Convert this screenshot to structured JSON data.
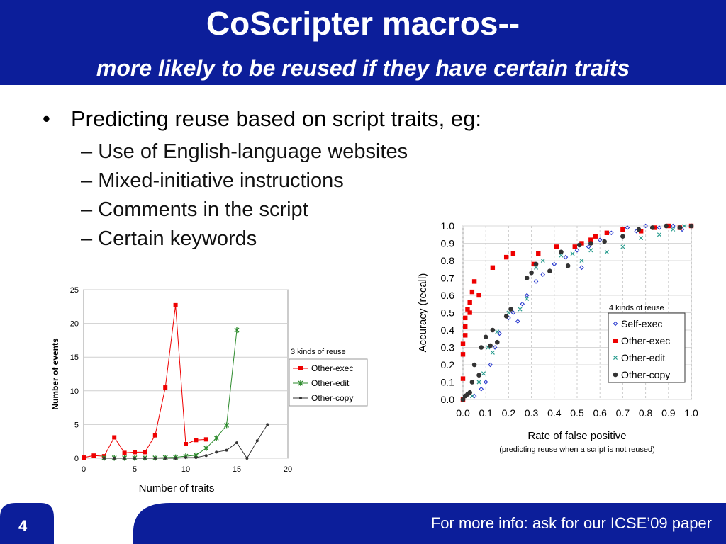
{
  "header": {
    "title": "CoScripter macros--",
    "subtitle": "more likely to be reused if they have certain traits"
  },
  "bullets": {
    "main": "Predicting reuse based on script traits, eg:",
    "dash": "–",
    "subs": [
      "Use of English-language websites",
      "Mixed-initiative instructions",
      "Comments in the script",
      "Certain keywords"
    ]
  },
  "footer": {
    "slide_number": "4",
    "text": "For more info: ask for our ICSE’09 paper"
  },
  "colors": {
    "header_bg": "#0c1e9a",
    "red": "#ee0000",
    "green": "#2e8b2e",
    "black": "#333333",
    "blue": "#2233cc",
    "teal": "#2a9d8f"
  },
  "chart_data": [
    {
      "type": "line",
      "xlabel": "Number of traits",
      "ylabel": "Number of events",
      "xlim": [
        0,
        20
      ],
      "ylim": [
        0,
        25
      ],
      "xticks": [
        0,
        5,
        10,
        15,
        20
      ],
      "yticks": [
        0,
        5,
        10,
        15,
        20,
        25
      ],
      "grid": true,
      "legend_title": "3 kinds of reuse",
      "legend_position": "right",
      "series": [
        {
          "name": "Other-exec",
          "marker": "square",
          "color": "#ee0000",
          "x": [
            0,
            1,
            2,
            3,
            4,
            5,
            6,
            7,
            8,
            9,
            10,
            11,
            12
          ],
          "y": [
            0.1,
            0.4,
            0.3,
            3.1,
            0.8,
            0.9,
            0.9,
            3.4,
            10.5,
            22.7,
            2.1,
            2.7,
            2.8
          ]
        },
        {
          "name": "Other-edit",
          "marker": "star",
          "color": "#2e8b2e",
          "x": [
            2,
            3,
            4,
            5,
            6,
            7,
            8,
            9,
            10,
            11,
            12,
            13,
            14,
            15
          ],
          "y": [
            0.05,
            0.05,
            0.05,
            0.05,
            0.05,
            0.05,
            0.1,
            0.15,
            0.3,
            0.45,
            1.5,
            3.0,
            4.9,
            19.0
          ]
        },
        {
          "name": "Other-copy",
          "marker": "dot",
          "color": "#333333",
          "x": [
            2,
            3,
            4,
            5,
            6,
            7,
            8,
            9,
            10,
            11,
            12,
            13,
            14,
            15,
            16,
            17,
            18
          ],
          "y": [
            0,
            0,
            0,
            0,
            0,
            0,
            0,
            0,
            0.1,
            0.1,
            0.4,
            0.9,
            1.2,
            2.3,
            0.0,
            2.6,
            5.0
          ]
        }
      ]
    },
    {
      "type": "scatter",
      "xlabel": "Rate of false positive",
      "xlabel_note": "(predicting reuse when a script is not reused)",
      "ylabel": "Accuracy (recall)",
      "xlim": [
        0,
        1
      ],
      "ylim": [
        0,
        1
      ],
      "xticks": [
        0.0,
        0.1,
        0.2,
        0.3,
        0.4,
        0.5,
        0.6,
        0.7,
        0.8,
        0.9,
        1.0
      ],
      "yticks": [
        0.0,
        0.1,
        0.2,
        0.3,
        0.4,
        0.5,
        0.6,
        0.7,
        0.8,
        0.9,
        1.0
      ],
      "tick_format": "0.0",
      "grid": true,
      "legend_title": "4 kinds of reuse",
      "legend_position": "right",
      "series": [
        {
          "name": "Self-exec",
          "marker": "diamond",
          "color": "#2233cc",
          "points": [
            [
              0.05,
              0.02
            ],
            [
              0.08,
              0.06
            ],
            [
              0.1,
              0.1
            ],
            [
              0.12,
              0.2
            ],
            [
              0.14,
              0.3
            ],
            [
              0.16,
              0.38
            ],
            [
              0.2,
              0.47
            ],
            [
              0.22,
              0.5
            ],
            [
              0.24,
              0.45
            ],
            [
              0.26,
              0.55
            ],
            [
              0.28,
              0.6
            ],
            [
              0.32,
              0.68
            ],
            [
              0.35,
              0.72
            ],
            [
              0.4,
              0.78
            ],
            [
              0.45,
              0.82
            ],
            [
              0.5,
              0.86
            ],
            [
              0.52,
              0.76
            ],
            [
              0.55,
              0.88
            ],
            [
              0.6,
              0.92
            ],
            [
              0.65,
              0.96
            ],
            [
              0.7,
              0.98
            ],
            [
              0.72,
              0.99
            ],
            [
              0.76,
              0.97
            ],
            [
              0.8,
              1.0
            ],
            [
              0.86,
              0.99
            ],
            [
              0.92,
              1.0
            ],
            [
              0.96,
              0.98
            ],
            [
              1.0,
              1.0
            ]
          ]
        },
        {
          "name": "Other-exec",
          "marker": "square",
          "color": "#ee0000",
          "points": [
            [
              0.0,
              0.0
            ],
            [
              0.0,
              0.12
            ],
            [
              0.0,
              0.26
            ],
            [
              0.0,
              0.32
            ],
            [
              0.01,
              0.37
            ],
            [
              0.01,
              0.42
            ],
            [
              0.01,
              0.47
            ],
            [
              0.02,
              0.52
            ],
            [
              0.03,
              0.5
            ],
            [
              0.03,
              0.56
            ],
            [
              0.04,
              0.62
            ],
            [
              0.05,
              0.68
            ],
            [
              0.07,
              0.6
            ],
            [
              0.13,
              0.76
            ],
            [
              0.19,
              0.82
            ],
            [
              0.22,
              0.84
            ],
            [
              0.31,
              0.78
            ],
            [
              0.33,
              0.84
            ],
            [
              0.41,
              0.88
            ],
            [
              0.49,
              0.88
            ],
            [
              0.52,
              0.9
            ],
            [
              0.56,
              0.92
            ],
            [
              0.58,
              0.94
            ],
            [
              0.63,
              0.96
            ],
            [
              0.7,
              0.98
            ],
            [
              0.78,
              0.97
            ],
            [
              0.84,
              0.99
            ],
            [
              0.9,
              1.0
            ],
            [
              0.95,
              0.99
            ],
            [
              1.0,
              1.0
            ]
          ]
        },
        {
          "name": "Other-edit",
          "marker": "cross",
          "color": "#2a9d8f",
          "points": [
            [
              0.04,
              0.02
            ],
            [
              0.07,
              0.1
            ],
            [
              0.09,
              0.15
            ],
            [
              0.11,
              0.3
            ],
            [
              0.13,
              0.27
            ],
            [
              0.15,
              0.39
            ],
            [
              0.2,
              0.5
            ],
            [
              0.25,
              0.52
            ],
            [
              0.28,
              0.58
            ],
            [
              0.32,
              0.76
            ],
            [
              0.35,
              0.8
            ],
            [
              0.43,
              0.83
            ],
            [
              0.48,
              0.84
            ],
            [
              0.52,
              0.8
            ],
            [
              0.56,
              0.86
            ],
            [
              0.63,
              0.85
            ],
            [
              0.7,
              0.88
            ],
            [
              0.78,
              0.93
            ],
            [
              0.86,
              0.95
            ],
            [
              0.92,
              0.98
            ],
            [
              0.97,
              1.0
            ]
          ]
        },
        {
          "name": "Other-copy",
          "marker": "dot",
          "color": "#333333",
          "points": [
            [
              0.0,
              0.0
            ],
            [
              0.01,
              0.02
            ],
            [
              0.02,
              0.03
            ],
            [
              0.03,
              0.04
            ],
            [
              0.04,
              0.1
            ],
            [
              0.05,
              0.2
            ],
            [
              0.07,
              0.14
            ],
            [
              0.08,
              0.3
            ],
            [
              0.1,
              0.36
            ],
            [
              0.12,
              0.31
            ],
            [
              0.13,
              0.4
            ],
            [
              0.15,
              0.33
            ],
            [
              0.19,
              0.48
            ],
            [
              0.21,
              0.52
            ],
            [
              0.28,
              0.7
            ],
            [
              0.3,
              0.73
            ],
            [
              0.32,
              0.78
            ],
            [
              0.38,
              0.74
            ],
            [
              0.43,
              0.85
            ],
            [
              0.46,
              0.77
            ],
            [
              0.51,
              0.89
            ],
            [
              0.56,
              0.9
            ],
            [
              0.62,
              0.91
            ],
            [
              0.7,
              0.94
            ],
            [
              0.77,
              0.98
            ],
            [
              0.83,
              0.99
            ],
            [
              0.89,
              1.0
            ],
            [
              0.95,
              0.99
            ],
            [
              1.0,
              1.0
            ]
          ]
        }
      ]
    }
  ]
}
